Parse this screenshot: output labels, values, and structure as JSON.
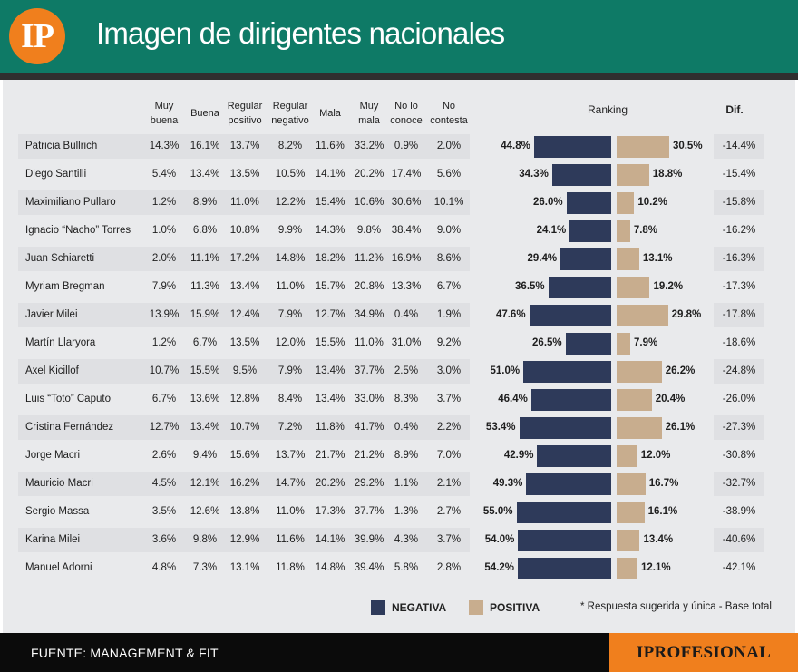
{
  "header": {
    "logo": "IP",
    "title": "Imagen de dirigentes nacionales"
  },
  "chart_data": {
    "type": "table",
    "title": "Imagen de dirigentes nacionales",
    "columns": [
      "Muy\nbuena",
      "Buena",
      "Regular\npositivo",
      "Regular\nnegativo",
      "Mala",
      "Muy\nmala",
      "No lo\nconoce",
      "No\ncontesta"
    ],
    "ranking_label": "Ranking",
    "dif_label": "Dif.",
    "rows": [
      {
        "name": "Patricia Bullrich",
        "values": [
          "14.3%",
          "16.1%",
          "13.7%",
          "8.2%",
          "11.6%",
          "33.2%",
          "0.9%",
          "2.0%"
        ],
        "negativa": 44.8,
        "positiva": 30.5,
        "dif": "-14.4%"
      },
      {
        "name": "Diego Santilli",
        "values": [
          "5.4%",
          "13.4%",
          "13.5%",
          "10.5%",
          "14.1%",
          "20.2%",
          "17.4%",
          "5.6%"
        ],
        "negativa": 34.3,
        "positiva": 18.8,
        "dif": "-15.4%"
      },
      {
        "name": "Maximiliano Pullaro",
        "values": [
          "1.2%",
          "8.9%",
          "11.0%",
          "12.2%",
          "15.4%",
          "10.6%",
          "30.6%",
          "10.1%"
        ],
        "negativa": 26.0,
        "positiva": 10.2,
        "dif": "-15.8%"
      },
      {
        "name": "Ignacio “Nacho” Torres",
        "values": [
          "1.0%",
          "6.8%",
          "10.8%",
          "9.9%",
          "14.3%",
          "9.8%",
          "38.4%",
          "9.0%"
        ],
        "negativa": 24.1,
        "positiva": 7.8,
        "dif": "-16.2%"
      },
      {
        "name": "Juan Schiaretti",
        "values": [
          "2.0%",
          "11.1%",
          "17.2%",
          "14.8%",
          "18.2%",
          "11.2%",
          "16.9%",
          "8.6%"
        ],
        "negativa": 29.4,
        "positiva": 13.1,
        "dif": "-16.3%"
      },
      {
        "name": "Myriam Bregman",
        "values": [
          "7.9%",
          "11.3%",
          "13.4%",
          "11.0%",
          "15.7%",
          "20.8%",
          "13.3%",
          "6.7%"
        ],
        "negativa": 36.5,
        "positiva": 19.2,
        "dif": "-17.3%"
      },
      {
        "name": "Javier Milei",
        "values": [
          "13.9%",
          "15.9%",
          "12.4%",
          "7.9%",
          "12.7%",
          "34.9%",
          "0.4%",
          "1.9%"
        ],
        "negativa": 47.6,
        "positiva": 29.8,
        "dif": "-17.8%"
      },
      {
        "name": "Martín Llaryora",
        "values": [
          "1.2%",
          "6.7%",
          "13.5%",
          "12.0%",
          "15.5%",
          "11.0%",
          "31.0%",
          "9.2%"
        ],
        "negativa": 26.5,
        "positiva": 7.9,
        "dif": "-18.6%"
      },
      {
        "name": "Axel Kicillof",
        "values": [
          "10.7%",
          "15.5%",
          "9.5%",
          "7.9%",
          "13.4%",
          "37.7%",
          "2.5%",
          "3.0%"
        ],
        "negativa": 51.0,
        "positiva": 26.2,
        "dif": "-24.8%"
      },
      {
        "name": "Luis “Toto” Caputo",
        "values": [
          "6.7%",
          "13.6%",
          "12.8%",
          "8.4%",
          "13.4%",
          "33.0%",
          "8.3%",
          "3.7%"
        ],
        "negativa": 46.4,
        "positiva": 20.4,
        "dif": "-26.0%"
      },
      {
        "name": "Cristina Fernández",
        "values": [
          "12.7%",
          "13.4%",
          "10.7%",
          "7.2%",
          "11.8%",
          "41.7%",
          "0.4%",
          "2.2%"
        ],
        "negativa": 53.4,
        "positiva": 26.1,
        "dif": "-27.3%"
      },
      {
        "name": "Jorge Macri",
        "values": [
          "2.6%",
          "9.4%",
          "15.6%",
          "13.7%",
          "21.7%",
          "21.2%",
          "8.9%",
          "7.0%"
        ],
        "negativa": 42.9,
        "positiva": 12.0,
        "dif": "-30.8%"
      },
      {
        "name": "Mauricio Macri",
        "values": [
          "4.5%",
          "12.1%",
          "16.2%",
          "14.7%",
          "20.2%",
          "29.2%",
          "1.1%",
          "2.1%"
        ],
        "negativa": 49.3,
        "positiva": 16.7,
        "dif": "-32.7%"
      },
      {
        "name": "Sergio Massa",
        "values": [
          "3.5%",
          "12.6%",
          "13.8%",
          "11.0%",
          "17.3%",
          "37.7%",
          "1.3%",
          "2.7%"
        ],
        "negativa": 55.0,
        "positiva": 16.1,
        "dif": "-38.9%"
      },
      {
        "name": "Karina Milei",
        "values": [
          "3.6%",
          "9.8%",
          "12.9%",
          "11.6%",
          "14.1%",
          "39.9%",
          "4.3%",
          "3.7%"
        ],
        "negativa": 54.0,
        "positiva": 13.4,
        "dif": "-40.6%"
      },
      {
        "name": "Manuel Adorni",
        "values": [
          "4.8%",
          "7.3%",
          "13.1%",
          "11.8%",
          "14.8%",
          "39.4%",
          "5.8%",
          "2.8%"
        ],
        "negativa": 54.2,
        "positiva": 12.1,
        "dif": "-42.1%"
      }
    ],
    "legend": [
      {
        "label": "NEGATIVA",
        "color": "#2e3a5a"
      },
      {
        "label": "POSITIVA",
        "color": "#c8ad8e"
      }
    ],
    "note": "* Respuesta sugerida y única - Base total"
  },
  "footer": {
    "source": "FUENTE: MANAGEMENT & FIT",
    "brand": "IPROFESIONAL"
  }
}
